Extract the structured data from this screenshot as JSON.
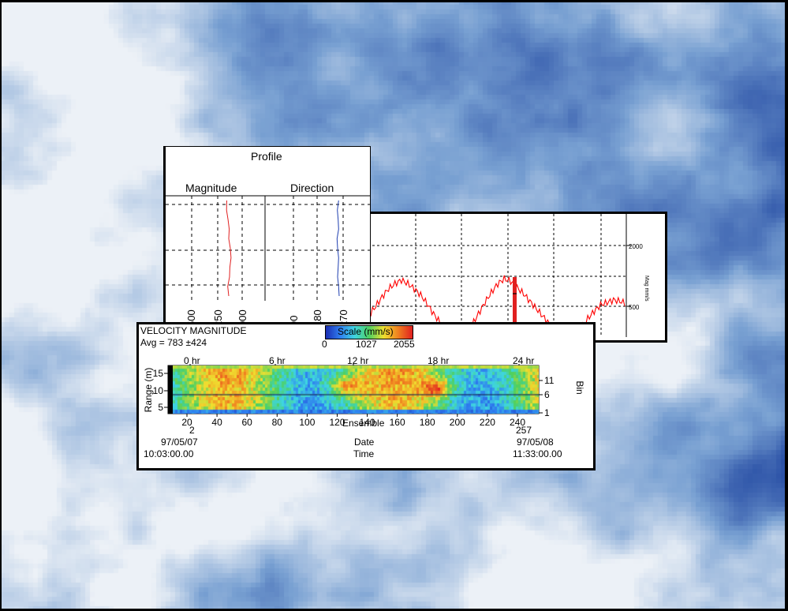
{
  "colors": {
    "sky_light": "#eef2f7",
    "sky_dark": "#2a4fa6",
    "trace": "#ff0000",
    "direction_trace": "#1f3fb0"
  },
  "profile": {
    "title": "Profile",
    "magnitude_label": "Magnitude",
    "direction_label": "Direction",
    "mag_ticks": [
      "500",
      "250",
      "000"
    ],
    "dir_ticks": [
      "90",
      "180",
      "270"
    ]
  },
  "timeseries": {
    "y_ticks": [
      "2000",
      "500"
    ],
    "y_label": "Mag mm/s",
    "spike_index": 112
  },
  "velocity": {
    "title": "VELOCITY MAGNITUDE",
    "avg": "Avg = 783 ±424",
    "scale_label": "Scale (mm/s)",
    "scale_ticks": [
      "0",
      "1027",
      "2055"
    ],
    "hour_ticks": [
      "0 hr",
      "6 hr",
      "12 hr",
      "18 hr",
      "24 hr"
    ],
    "y_label": "Range (m)",
    "range_ticks": [
      "15",
      "10",
      "5"
    ],
    "bin_label": "Bin",
    "bin_ticks": [
      "11",
      "6",
      "1"
    ],
    "ensemble_ticks": [
      "20",
      "40",
      "60",
      "80",
      "100",
      "120",
      "140",
      "160",
      "180",
      "200",
      "220",
      "240"
    ],
    "ensemble_label": "Ensemble",
    "ensemble_start": "2",
    "ensemble_end": "257",
    "date_label": "Date",
    "date_start": "97/05/07",
    "date_end": "97/05/08",
    "time_label": "Time",
    "time_start": "10:03:00.00",
    "time_end": "11:33:00.00"
  },
  "chart_data": [
    {
      "type": "line",
      "title": "Profile",
      "series": [
        {
          "name": "Magnitude",
          "x": [
            255,
            262,
            250,
            248,
            240,
            245,
            255,
            252,
            260,
            270,
            268
          ],
          "y": [
            1,
            2,
            3,
            4,
            5,
            6,
            7,
            8,
            9,
            10,
            11
          ]
        },
        {
          "name": "Direction",
          "x": [
            282,
            280,
            276,
            278,
            280,
            276,
            274,
            280,
            278,
            275,
            280
          ],
          "y": [
            1,
            2,
            3,
            4,
            5,
            6,
            7,
            8,
            9,
            10,
            11
          ]
        }
      ],
      "mag_xlim": [
        500,
        0
      ],
      "dir_xlim": [
        0,
        300
      ]
    },
    {
      "type": "line",
      "ylabel": "Mag mm/s",
      "ylim": [
        0,
        2500
      ],
      "series": [
        {
          "values": [
            700,
            760,
            900,
            1050,
            1180,
            1260,
            1320,
            1260,
            1180,
            1080,
            940,
            780,
            640,
            520,
            420,
            380,
            440,
            600,
            780,
            960,
            1120,
            1260,
            1340,
            1300,
            1200,
            1100,
            980,
            860,
            740,
            620,
            500,
            400,
            360,
            420,
            560,
            700,
            820,
            920,
            960,
            1000,
            980,
            940
          ]
        }
      ]
    },
    {
      "type": "heatmap",
      "title": "VELOCITY MAGNITUDE",
      "xlabel": "Ensemble",
      "ylabel": "Range (m)",
      "xlim": [
        2,
        257
      ],
      "ylim": [
        2,
        17
      ],
      "colorbar": [
        0,
        2055
      ],
      "avg": 783,
      "std": 424
    }
  ]
}
